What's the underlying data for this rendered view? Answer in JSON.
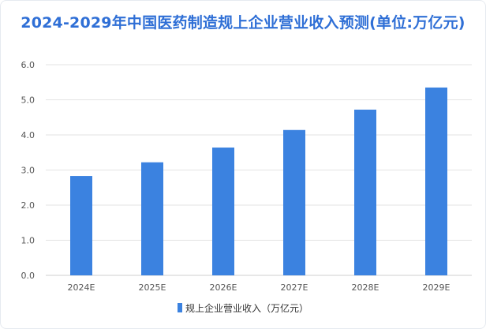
{
  "chart_data": {
    "type": "bar",
    "title": "2024-2029年中国医药制造规上企业营业收入预测(单位:万亿元)",
    "categories": [
      "2024E",
      "2025E",
      "2026E",
      "2027E",
      "2028E",
      "2029E"
    ],
    "series": [
      {
        "name": "规上企业营业收入（万亿元）",
        "values": [
          2.83,
          3.22,
          3.64,
          4.14,
          4.72,
          5.35
        ]
      }
    ],
    "ylim": [
      0,
      6
    ],
    "yticks": [
      "0.0",
      "1.0",
      "2.0",
      "3.0",
      "4.0",
      "5.0",
      "6.0"
    ],
    "grid": true,
    "legend_position": "bottom",
    "colors": {
      "bar": "#3b82e0",
      "title": "#2f6fd6",
      "grid": "#e3e3e3"
    }
  }
}
